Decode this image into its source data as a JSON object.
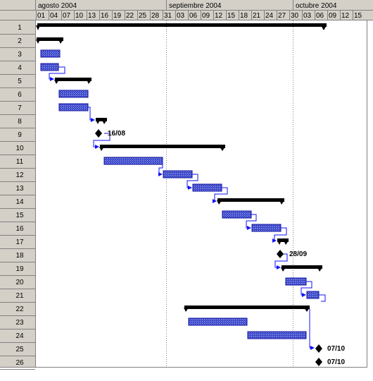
{
  "timeline": {
    "months": [
      {
        "label": "agosto 2004"
      },
      {
        "label": "septiembre 2004"
      },
      {
        "label": "octubre 2004"
      }
    ],
    "days": [
      "01",
      "04",
      "07",
      "10",
      "13",
      "16",
      "19",
      "22",
      "25",
      "28",
      "31",
      "03",
      "06",
      "09",
      "12",
      "15",
      "18",
      "21",
      "24",
      "27",
      "30",
      "03",
      "06",
      "09",
      "12",
      "15"
    ]
  },
  "rows": [
    "1",
    "2",
    "3",
    "4",
    "5",
    "6",
    "7",
    "8",
    "9",
    "10",
    "11",
    "12",
    "13",
    "14",
    "15",
    "16",
    "17",
    "18",
    "19",
    "20",
    "21",
    "22",
    "23",
    "24",
    "25",
    "26"
  ],
  "milestones": {
    "m9": "16/08",
    "m18": "28/09",
    "m25": "07/10",
    "m26": "07/10"
  },
  "colors": {
    "header_bg": "#d4d0c8",
    "task_fill": "#3b48c8",
    "summary": "#000000",
    "link": "#1010ff"
  }
}
